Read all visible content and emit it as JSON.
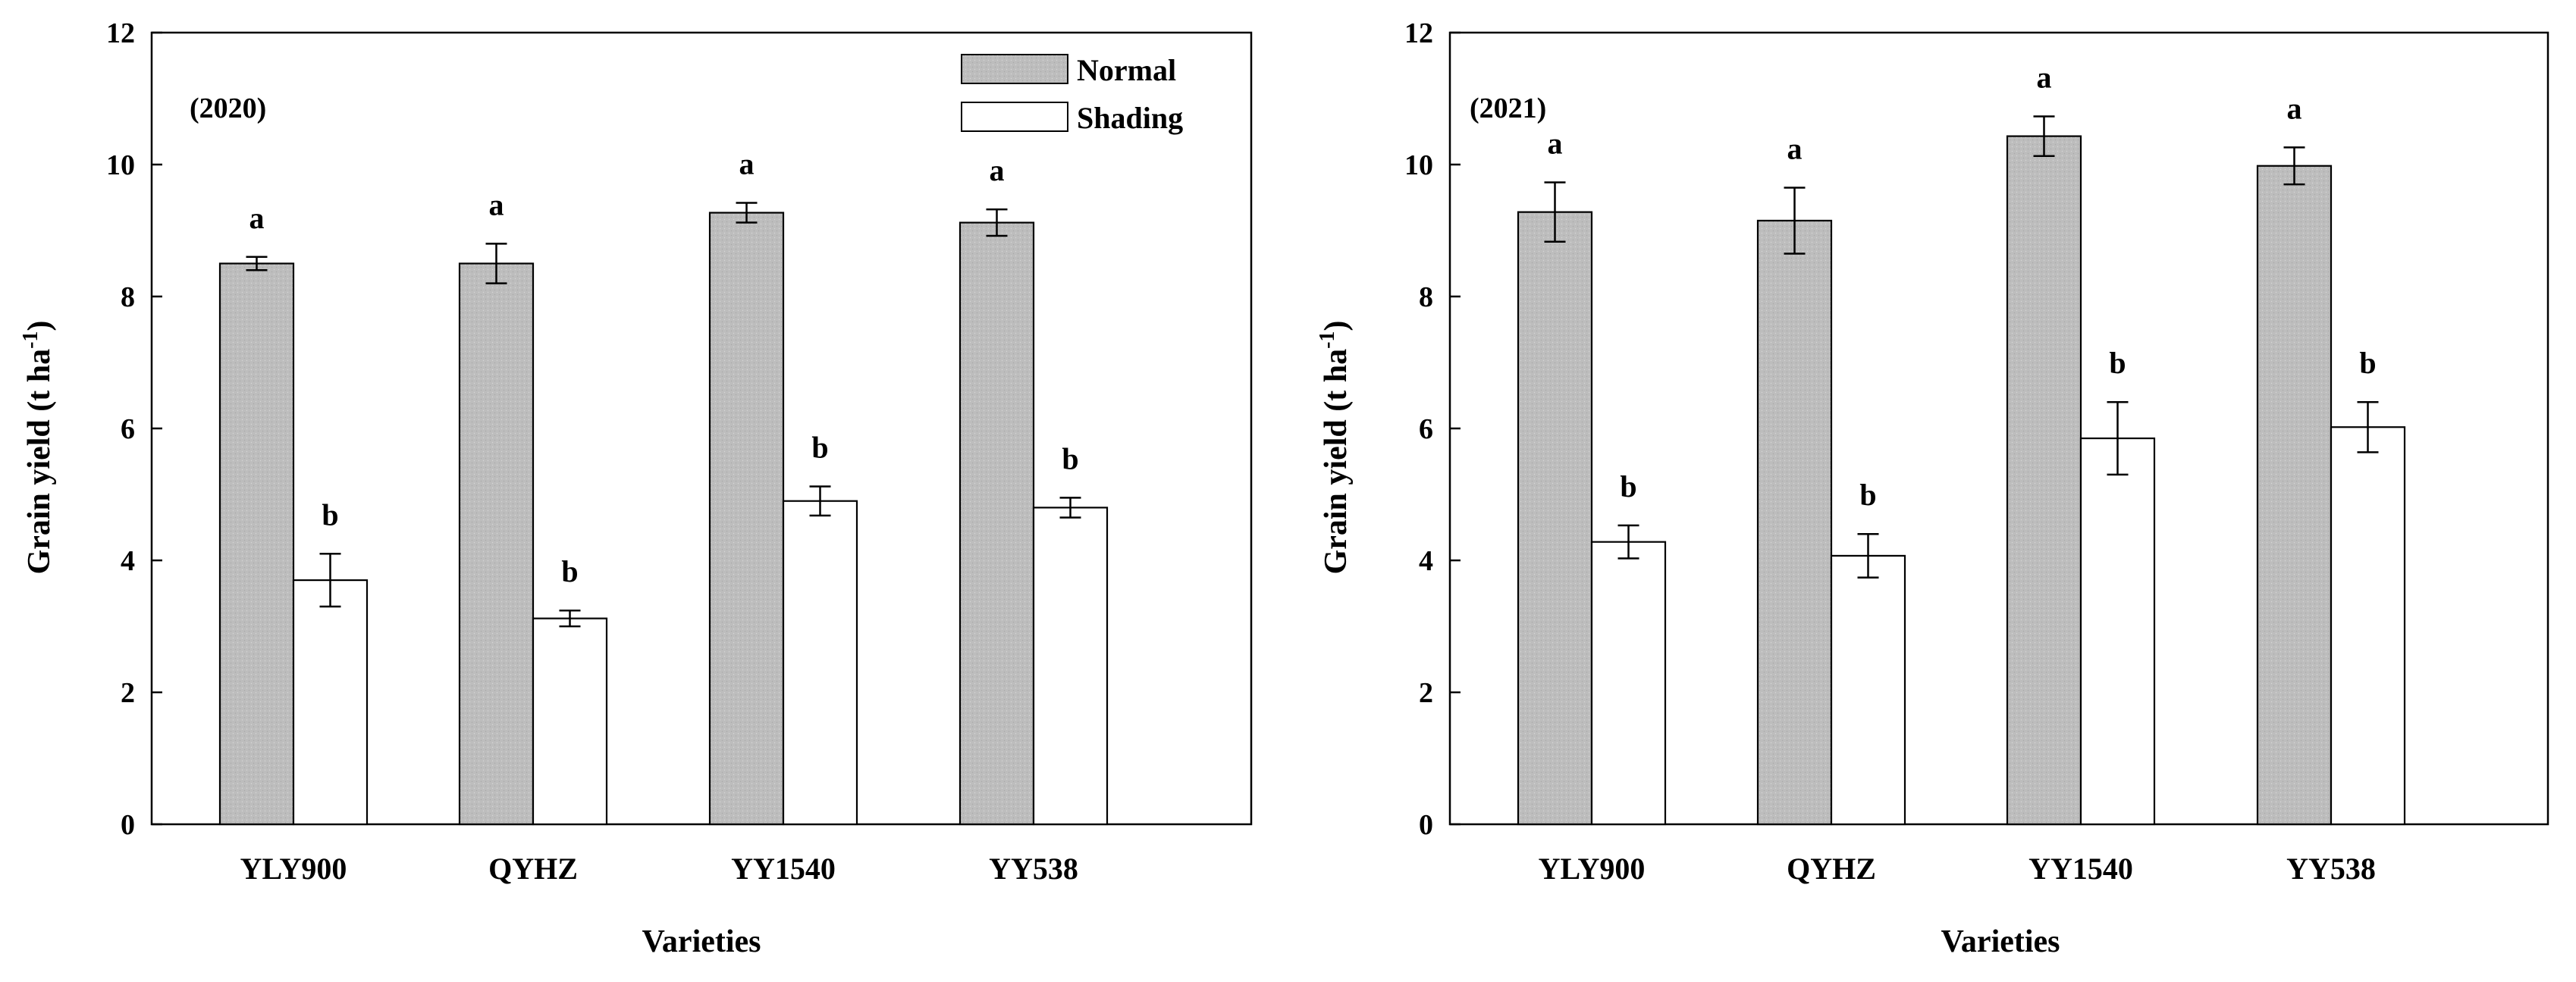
{
  "chart_data": [
    {
      "type": "bar",
      "panel_label": "(2020)",
      "xlabel": "Varieties",
      "ylabel": "Grain yield (t ha",
      "ylabel_sup": "-1",
      "ylabel_close": ")",
      "ylim": [
        0,
        12
      ],
      "yticks": [
        "0",
        "2",
        "4",
        "6",
        "8",
        "10",
        "12"
      ],
      "categories": [
        "YLY900",
        "QYHZ",
        "YY1540",
        "YY538"
      ],
      "legend": {
        "placement": "top-right",
        "show": true
      },
      "series": [
        {
          "name": "Normal",
          "color": "#bdbdbd",
          "values": [
            8.5,
            8.5,
            9.27,
            9.12
          ],
          "errors": [
            0.1,
            0.3,
            0.15,
            0.2
          ],
          "letters": [
            "a",
            "a",
            "a",
            "a"
          ]
        },
        {
          "name": "Shading",
          "color": "#ffffff",
          "values": [
            3.7,
            3.12,
            4.9,
            4.8
          ],
          "errors": [
            0.4,
            0.12,
            0.22,
            0.15
          ],
          "letters": [
            "b",
            "b",
            "b",
            "b"
          ]
        }
      ]
    },
    {
      "type": "bar",
      "panel_label": "(2021)",
      "xlabel": "Varieties",
      "ylabel": "Grain yield (t ha",
      "ylabel_sup": "-1",
      "ylabel_close": ")",
      "ylim": [
        0,
        12
      ],
      "yticks": [
        "0",
        "2",
        "4",
        "6",
        "8",
        "10",
        "12"
      ],
      "categories": [
        "YLY900",
        "QYHZ",
        "YY1540",
        "YY538"
      ],
      "legend": {
        "placement": "none",
        "show": false
      },
      "series": [
        {
          "name": "Normal",
          "color": "#bdbdbd",
          "values": [
            9.28,
            9.15,
            10.43,
            9.98
          ],
          "errors": [
            0.45,
            0.5,
            0.3,
            0.28
          ],
          "letters": [
            "a",
            "a",
            "a",
            "a"
          ]
        },
        {
          "name": "Shading",
          "color": "#ffffff",
          "values": [
            4.28,
            4.07,
            5.85,
            6.02
          ],
          "errors": [
            0.25,
            0.33,
            0.55,
            0.38
          ],
          "letters": [
            "b",
            "b",
            "b",
            "b"
          ]
        }
      ]
    }
  ]
}
